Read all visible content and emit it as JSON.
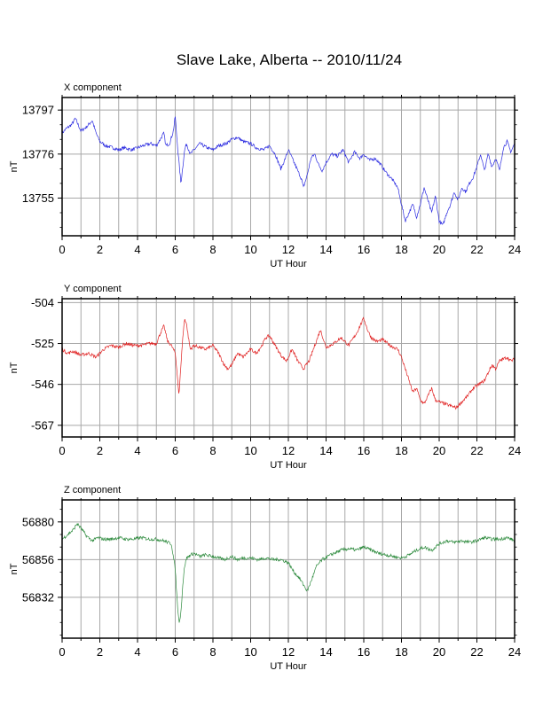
{
  "title": "Slave Lake, Alberta -- 2010/11/24",
  "chart_data": [
    {
      "type": "line",
      "label": "X component",
      "ylabel": "nT",
      "xlabel": "UT Hour",
      "xlim": [
        0,
        24
      ],
      "ylim": [
        13737,
        13803
      ],
      "xticks": [
        0,
        2,
        4,
        6,
        8,
        10,
        12,
        14,
        16,
        18,
        20,
        22,
        24
      ],
      "yticks": [
        13755,
        13776,
        13797
      ],
      "grid": true,
      "color": "#2a2ae0",
      "series": [
        {
          "x": [
            0,
            0.2,
            0.5,
            0.7,
            1,
            1.3,
            1.6,
            1.8,
            2.0,
            2.3,
            2.7,
            3.0,
            3.3,
            3.7,
            4.0,
            4.3,
            4.7,
            5.0,
            5.2,
            5.4,
            5.5,
            5.7,
            5.9,
            6.0,
            6.1,
            6.2,
            6.3,
            6.4,
            6.5,
            6.6,
            6.8,
            7.0,
            7.3,
            7.7,
            8.0,
            8.3,
            8.7,
            9.0,
            9.3,
            9.6,
            10.0,
            10.3,
            10.7,
            11.0,
            11.3,
            11.6,
            11.8,
            12.0,
            12.2,
            12.5,
            12.7,
            12.8,
            13.0,
            13.2,
            13.4,
            13.6,
            13.8,
            14.0,
            14.3,
            14.6,
            14.9,
            15.2,
            15.5,
            15.8,
            16.0,
            16.3,
            16.6,
            16.9,
            17.2,
            17.5,
            17.8,
            18.0,
            18.2,
            18.4,
            18.6,
            18.8,
            19.0,
            19.2,
            19.4,
            19.6,
            19.8,
            20.0,
            20.2,
            20.4,
            20.6,
            20.8,
            21.0,
            21.2,
            21.4,
            21.6,
            21.8,
            22.0,
            22.2,
            22.4,
            22.6,
            22.8,
            23.0,
            23.2,
            23.4,
            23.6,
            23.8,
            24.0
          ],
          "y": [
            13786,
            13788,
            13790,
            13793,
            13787,
            13789,
            13792,
            13786,
            13782,
            13780,
            13779,
            13778,
            13779,
            13778,
            13779,
            13780,
            13781,
            13780,
            13783,
            13786,
            13780,
            13781,
            13787,
            13794,
            13782,
            13772,
            13762,
            13770,
            13778,
            13781,
            13776,
            13778,
            13781,
            13779,
            13778,
            13780,
            13781,
            13783,
            13784,
            13782,
            13781,
            13779,
            13778,
            13780,
            13776,
            13769,
            13773,
            13778,
            13774,
            13768,
            13764,
            13760,
            13766,
            13774,
            13776,
            13771,
            13768,
            13772,
            13776,
            13775,
            13778,
            13772,
            13777,
            13774,
            13776,
            13773,
            13774,
            13771,
            13767,
            13764,
            13760,
            13752,
            13744,
            13748,
            13752,
            13746,
            13752,
            13760,
            13754,
            13748,
            13756,
            13744,
            13742,
            13748,
            13752,
            13758,
            13754,
            13760,
            13758,
            13762,
            13765,
            13770,
            13776,
            13768,
            13776,
            13770,
            13774,
            13768,
            13779,
            13782,
            13777,
            13781
          ]
        }
      ]
    },
    {
      "type": "line",
      "label": "Y component",
      "ylabel": "nT",
      "xlabel": "UT Hour",
      "xlim": [
        0,
        24
      ],
      "ylim": [
        -573,
        -502
      ],
      "xticks": [
        0,
        2,
        4,
        6,
        8,
        10,
        12,
        14,
        16,
        18,
        20,
        22,
        24
      ],
      "yticks": [
        -504,
        -525,
        -546,
        -567
      ],
      "grid": true,
      "color": "#e02020",
      "series": [
        {
          "x": [
            0,
            0.3,
            0.6,
            1.0,
            1.4,
            1.8,
            2.2,
            2.6,
            3.0,
            3.4,
            3.8,
            4.2,
            4.6,
            5.0,
            5.2,
            5.4,
            5.6,
            5.8,
            6.0,
            6.1,
            6.2,
            6.3,
            6.4,
            6.5,
            6.6,
            6.7,
            6.8,
            7.0,
            7.3,
            7.6,
            8.0,
            8.3,
            8.6,
            8.8,
            9.0,
            9.3,
            9.6,
            10.0,
            10.3,
            10.6,
            10.8,
            11.0,
            11.3,
            11.6,
            11.9,
            12.2,
            12.5,
            12.8,
            13.1,
            13.4,
            13.7,
            14.0,
            14.4,
            14.8,
            15.2,
            15.6,
            16.0,
            16.2,
            16.4,
            16.7,
            17.0,
            17.4,
            17.8,
            18.0,
            18.2,
            18.4,
            18.6,
            18.8,
            19.0,
            19.2,
            19.4,
            19.6,
            19.8,
            20.0,
            20.3,
            20.6,
            20.9,
            21.2,
            21.5,
            21.8,
            22.1,
            22.4,
            22.6,
            22.8,
            23.0,
            23.2,
            23.4,
            23.6,
            23.8,
            24.0
          ],
          "y": [
            -528,
            -530,
            -529,
            -531,
            -530,
            -532,
            -528,
            -526,
            -527,
            -525,
            -526,
            -526,
            -525,
            -525,
            -520,
            -516,
            -524,
            -526,
            -530,
            -540,
            -552,
            -536,
            -522,
            -512,
            -515,
            -522,
            -528,
            -526,
            -527,
            -528,
            -526,
            -530,
            -536,
            -538,
            -536,
            -530,
            -532,
            -528,
            -530,
            -526,
            -522,
            -521,
            -526,
            -531,
            -534,
            -528,
            -534,
            -538,
            -534,
            -526,
            -518,
            -527,
            -525,
            -522,
            -526,
            -520,
            -512,
            -518,
            -522,
            -524,
            -523,
            -526,
            -528,
            -532,
            -538,
            -544,
            -550,
            -548,
            -554,
            -556,
            -552,
            -548,
            -554,
            -555,
            -556,
            -557,
            -558,
            -555,
            -552,
            -548,
            -546,
            -544,
            -540,
            -536,
            -538,
            -534,
            -533,
            -532,
            -534,
            -533
          ]
        }
      ]
    },
    {
      "type": "line",
      "label": "Z component",
      "ylabel": "nT",
      "xlabel": "UT Hour",
      "xlim": [
        0,
        24
      ],
      "ylim": [
        56806,
        56894
      ],
      "xticks": [
        0,
        2,
        4,
        6,
        8,
        10,
        12,
        14,
        16,
        18,
        20,
        22,
        24
      ],
      "yticks": [
        56832,
        56856,
        56880
      ],
      "grid": true,
      "color": "#2e8b3e",
      "series": [
        {
          "x": [
            0,
            0.3,
            0.6,
            0.8,
            1.0,
            1.3,
            1.6,
            1.9,
            2.2,
            2.6,
            3.0,
            3.4,
            3.8,
            4.2,
            4.6,
            5.0,
            5.4,
            5.8,
            6.0,
            6.1,
            6.2,
            6.3,
            6.4,
            6.5,
            6.6,
            6.8,
            7.0,
            7.3,
            7.6,
            8.0,
            8.3,
            8.6,
            9.0,
            9.3,
            9.6,
            10.0,
            10.4,
            10.8,
            11.2,
            11.6,
            12.0,
            12.3,
            12.6,
            12.8,
            13.0,
            13.2,
            13.5,
            13.8,
            14.1,
            14.4,
            14.8,
            15.2,
            15.6,
            16.0,
            16.4,
            16.8,
            17.2,
            17.6,
            18.0,
            18.4,
            18.8,
            19.2,
            19.6,
            20.0,
            20.4,
            20.8,
            21.2,
            21.6,
            22.0,
            22.4,
            22.8,
            23.2,
            23.6,
            24.0
          ],
          "y": [
            56869,
            56872,
            56875,
            56879,
            56876,
            56871,
            56868,
            56870,
            56869,
            56869,
            56870,
            56869,
            56869,
            56870,
            56869,
            56869,
            56868,
            56866,
            56850,
            56830,
            56816,
            56822,
            56840,
            56852,
            56857,
            56859,
            56860,
            56858,
            56859,
            56858,
            56857,
            56856,
            56858,
            56856,
            56857,
            56857,
            56856,
            56857,
            56856,
            56856,
            56854,
            56848,
            56844,
            56840,
            56836,
            56842,
            56852,
            56856,
            56858,
            56860,
            56862,
            56863,
            56862,
            56864,
            56862,
            56860,
            56859,
            56858,
            56857,
            56859,
            56862,
            56864,
            56862,
            56866,
            56868,
            56867,
            56868,
            56867,
            56868,
            56870,
            56869,
            56869,
            56870,
            56868
          ]
        }
      ]
    }
  ]
}
